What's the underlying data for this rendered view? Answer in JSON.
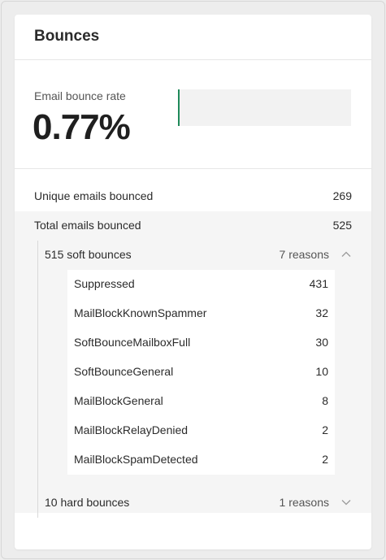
{
  "card": {
    "title": "Bounces"
  },
  "rate": {
    "label": "Email bounce rate",
    "value": "0.77%",
    "fraction": 0.0077,
    "bar_color": "#1f8a5a"
  },
  "summary": {
    "unique": {
      "label": "Unique emails bounced",
      "value": "269"
    },
    "total": {
      "label": "Total emails bounced",
      "value": "525"
    }
  },
  "soft": {
    "label": "515 soft bounces",
    "reasons": "7 reasons",
    "expanded": true,
    "chevron_icon": "chevron-up-icon",
    "items": [
      {
        "label": "Suppressed",
        "value": "431"
      },
      {
        "label": "MailBlockKnownSpammer",
        "value": "32"
      },
      {
        "label": "SoftBounceMailboxFull",
        "value": "30"
      },
      {
        "label": "SoftBounceGeneral",
        "value": "10"
      },
      {
        "label": "MailBlockGeneral",
        "value": "8"
      },
      {
        "label": "MailBlockRelayDenied",
        "value": "2"
      },
      {
        "label": "MailBlockSpamDetected",
        "value": "2"
      }
    ]
  },
  "hard": {
    "label": "10 hard bounces",
    "reasons": "1 reasons",
    "expanded": false,
    "chevron_icon": "chevron-down-icon"
  }
}
